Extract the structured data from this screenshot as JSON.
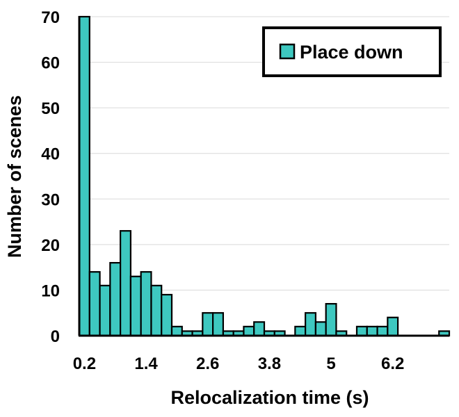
{
  "chart_data": {
    "type": "bar",
    "title": "",
    "xlabel": "Relocalization time (s)",
    "ylabel": "Number of scenes",
    "ylim": [
      0,
      70
    ],
    "yticks": [
      0,
      10,
      20,
      30,
      40,
      50,
      60,
      70
    ],
    "xtick_labels": [
      "0.2",
      "1.4",
      "2.6",
      "3.8",
      "5",
      "6.2"
    ],
    "bin_width": 0.2,
    "grid": "horizontal",
    "legend_position": "top-right",
    "series": [
      {
        "name": "Place down",
        "color": "#3ec8c0",
        "x": [
          0.2,
          0.4,
          0.6,
          0.8,
          1.0,
          1.2,
          1.4,
          1.6,
          1.8,
          2.0,
          2.2,
          2.4,
          2.6,
          2.8,
          3.0,
          3.2,
          3.4,
          3.6,
          3.8,
          4.0,
          4.2,
          4.4,
          4.6,
          4.8,
          5.0,
          5.2,
          5.4,
          5.6,
          5.8,
          6.0,
          6.2,
          6.4,
          6.6,
          6.8,
          7.0,
          7.2
        ],
        "values": [
          70,
          14,
          11,
          16,
          23,
          13,
          14,
          11,
          9,
          2,
          1,
          1,
          5,
          5,
          1,
          1,
          2,
          3,
          1,
          1,
          0,
          2,
          5,
          3,
          7,
          1,
          0,
          2,
          2,
          2,
          4,
          0,
          0,
          0,
          0,
          1
        ]
      }
    ]
  }
}
